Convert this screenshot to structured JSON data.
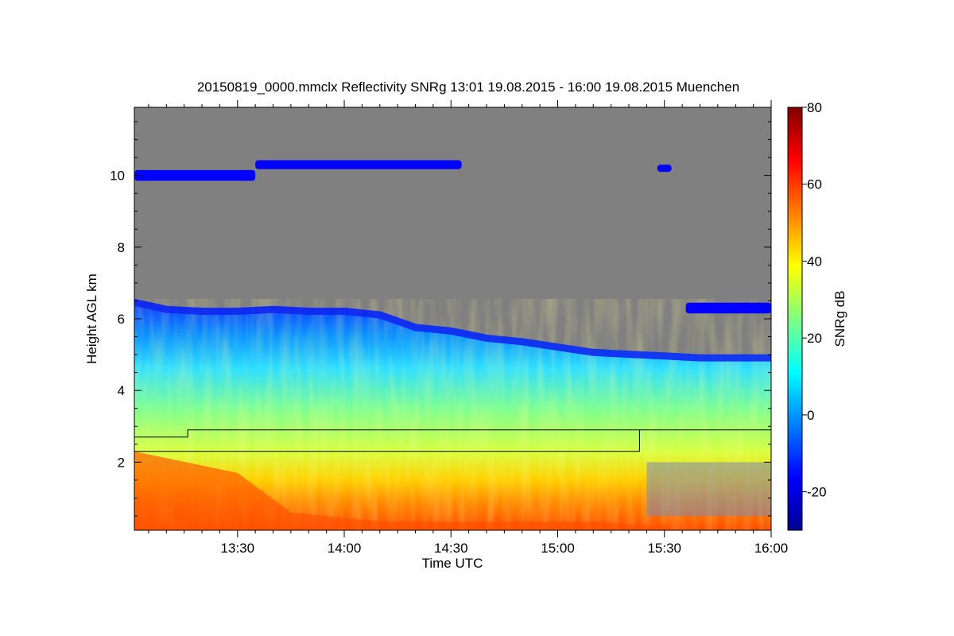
{
  "chart_data": {
    "type": "heatmap",
    "title": "20150819_0000.mmclx Reflectivity SNRg   13:01 19.08.2015 - 16:00 19.08.2015 Muenchen",
    "xlabel": "Time UTC",
    "ylabel": "Height AGL km",
    "colorbar_label": "SNRg dB",
    "x_tick_labels": [
      "13:30",
      "14:00",
      "14:30",
      "15:00",
      "15:30",
      "16:00"
    ],
    "x_tick_minutes": [
      30,
      60,
      90,
      120,
      150,
      180
    ],
    "xlim_minutes": [
      1,
      180
    ],
    "y_tick_labels": [
      "2",
      "4",
      "6",
      "8",
      "10"
    ],
    "y_tick_values": [
      2,
      4,
      6,
      8,
      10
    ],
    "ylim": [
      0.1,
      11.9
    ],
    "colorbar_tick_labels": [
      "-20",
      "0",
      "20",
      "40",
      "60",
      "80"
    ],
    "colorbar_tick_values": [
      -20,
      0,
      20,
      40,
      60,
      80
    ],
    "colorbar_range": [
      -30,
      80
    ],
    "no_data_color": "#808080",
    "colormap": [
      "#00008f",
      "#0000ff",
      "#0080ff",
      "#00ffff",
      "#80ff80",
      "#ffff00",
      "#ff8000",
      "#ff0000",
      "#800000"
    ],
    "cloud_top_km": [
      {
        "t": 1,
        "h": 6.55
      },
      {
        "t": 10,
        "h": 6.35
      },
      {
        "t": 20,
        "h": 6.3
      },
      {
        "t": 30,
        "h": 6.3
      },
      {
        "t": 40,
        "h": 6.35
      },
      {
        "t": 50,
        "h": 6.3
      },
      {
        "t": 60,
        "h": 6.3
      },
      {
        "t": 70,
        "h": 6.2
      },
      {
        "t": 80,
        "h": 5.85
      },
      {
        "t": 90,
        "h": 5.75
      },
      {
        "t": 100,
        "h": 5.55
      },
      {
        "t": 110,
        "h": 5.45
      },
      {
        "t": 120,
        "h": 5.3
      },
      {
        "t": 130,
        "h": 5.15
      },
      {
        "t": 140,
        "h": 5.1
      },
      {
        "t": 150,
        "h": 5.05
      },
      {
        "t": 160,
        "h": 5.0
      },
      {
        "t": 170,
        "h": 5.0
      },
      {
        "t": 180,
        "h": 5.0
      }
    ],
    "cirrus_layers": [
      {
        "t_start": 1,
        "t_end": 35,
        "h_center": 10.0,
        "depth": 0.3,
        "snr": -18
      },
      {
        "t_start": 35,
        "t_end": 93,
        "h_center": 10.3,
        "depth": 0.25,
        "snr": -20
      },
      {
        "t_start": 148,
        "t_end": 152,
        "h_center": 10.2,
        "depth": 0.2,
        "snr": -20
      },
      {
        "t_start": 156,
        "t_end": 180,
        "h_center": 6.3,
        "depth": 0.3,
        "snr": -18
      }
    ],
    "mixing_layer_lines": [
      {
        "points": [
          {
            "t": 1,
            "h": 2.7
          },
          {
            "t": 16,
            "h": 2.7
          },
          {
            "t": 16,
            "h": 2.9
          },
          {
            "t": 180,
            "h": 2.9
          }
        ]
      },
      {
        "points": [
          {
            "t": 1,
            "h": 2.3
          },
          {
            "t": 143,
            "h": 2.3
          },
          {
            "t": 143,
            "h": 2.9
          }
        ]
      }
    ]
  }
}
